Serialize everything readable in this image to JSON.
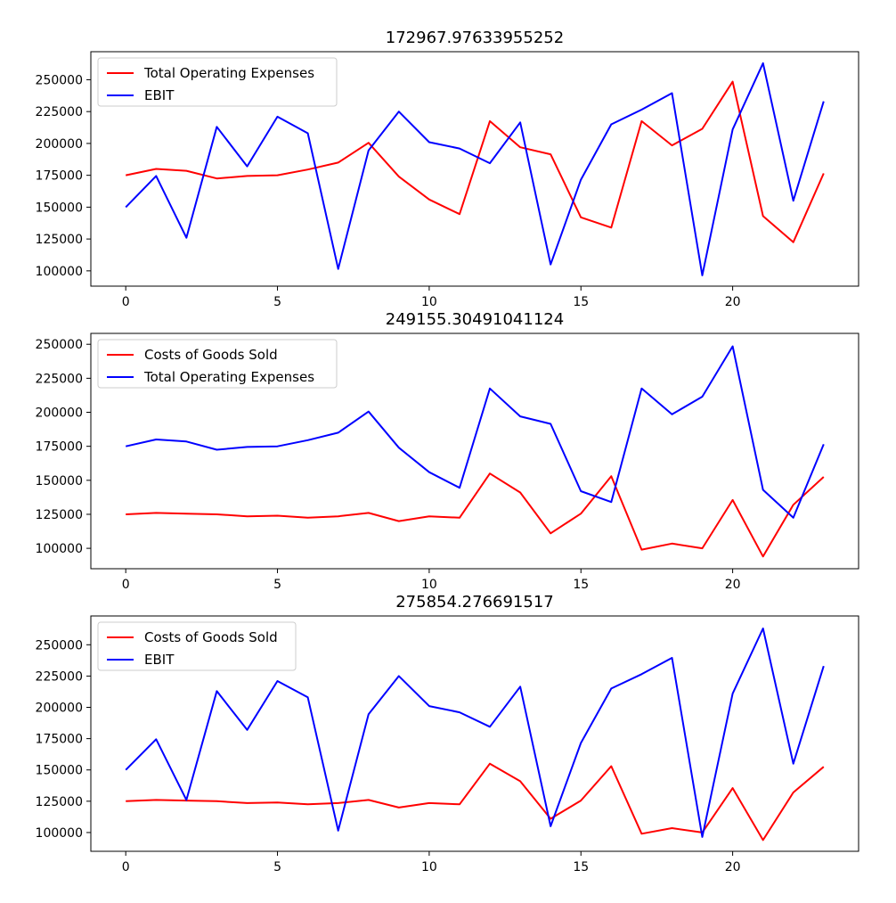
{
  "chart_data": [
    {
      "type": "line",
      "title": "172967.97633955252",
      "x": [
        0,
        1,
        2,
        3,
        4,
        5,
        6,
        7,
        8,
        9,
        10,
        11,
        12,
        13,
        14,
        15,
        16,
        17,
        18,
        19,
        20,
        21,
        22,
        23
      ],
      "xticks": [
        0,
        5,
        10,
        15,
        20
      ],
      "xlim": [
        -1.15,
        24.15
      ],
      "yticks": [
        100000,
        125000,
        150000,
        175000,
        200000,
        225000,
        250000
      ],
      "ylim": [
        88000,
        272000
      ],
      "legend_position": "upper-left",
      "grid": false,
      "series": [
        {
          "name": "Total Operating Expenses",
          "color": "#ff0000",
          "values": [
            175000,
            180000,
            178500,
            172500,
            174500,
            175000,
            179500,
            185000,
            200500,
            174000,
            156000,
            144500,
            217500,
            197000,
            191500,
            142000,
            134000,
            217500,
            198500,
            211500,
            248500,
            143000,
            122500,
            176500
          ]
        },
        {
          "name": "EBIT",
          "color": "#0000ff",
          "values": [
            150000,
            174500,
            126000,
            213000,
            182000,
            221000,
            208000,
            101500,
            194500,
            225000,
            201000,
            196000,
            184500,
            216500,
            105000,
            171500,
            215000,
            226500,
            239500,
            96500,
            211000,
            263000,
            155000,
            233000
          ]
        }
      ]
    },
    {
      "type": "line",
      "title": "249155.30491041124",
      "x": [
        0,
        1,
        2,
        3,
        4,
        5,
        6,
        7,
        8,
        9,
        10,
        11,
        12,
        13,
        14,
        15,
        16,
        17,
        18,
        19,
        20,
        21,
        22,
        23
      ],
      "xticks": [
        0,
        5,
        10,
        15,
        20
      ],
      "xlim": [
        -1.15,
        24.15
      ],
      "yticks": [
        100000,
        125000,
        150000,
        175000,
        200000,
        225000,
        250000
      ],
      "ylim": [
        85000,
        258000
      ],
      "legend_position": "upper-left",
      "grid": false,
      "series": [
        {
          "name": "Costs of Goods Sold",
          "color": "#ff0000",
          "values": [
            125000,
            126000,
            125500,
            125000,
            123500,
            124000,
            122500,
            123500,
            126000,
            120000,
            123500,
            122500,
            155000,
            141000,
            111000,
            125500,
            153000,
            99000,
            103500,
            100000,
            135500,
            94000,
            132000,
            152500
          ]
        },
        {
          "name": "Total Operating Expenses",
          "color": "#0000ff",
          "values": [
            175000,
            180000,
            178500,
            172500,
            174500,
            175000,
            179500,
            185000,
            200500,
            174000,
            156000,
            144500,
            217500,
            197000,
            191500,
            142000,
            134000,
            217500,
            198500,
            211500,
            248500,
            143000,
            122500,
            176500
          ]
        }
      ]
    },
    {
      "type": "line",
      "title": "275854.276691517",
      "x": [
        0,
        1,
        2,
        3,
        4,
        5,
        6,
        7,
        8,
        9,
        10,
        11,
        12,
        13,
        14,
        15,
        16,
        17,
        18,
        19,
        20,
        21,
        22,
        23
      ],
      "xticks": [
        0,
        5,
        10,
        15,
        20
      ],
      "xlim": [
        -1.15,
        24.15
      ],
      "yticks": [
        100000,
        125000,
        150000,
        175000,
        200000,
        225000,
        250000
      ],
      "ylim": [
        85000,
        273000
      ],
      "legend_position": "upper-left",
      "grid": false,
      "series": [
        {
          "name": "Costs of Goods Sold",
          "color": "#ff0000",
          "values": [
            125000,
            126000,
            125500,
            125000,
            123500,
            124000,
            122500,
            123500,
            126000,
            120000,
            123500,
            122500,
            155000,
            141000,
            111000,
            125500,
            153000,
            99000,
            103500,
            100000,
            135500,
            94000,
            132000,
            152500
          ]
        },
        {
          "name": "EBIT",
          "color": "#0000ff",
          "values": [
            150000,
            174500,
            126000,
            213000,
            182000,
            221000,
            208000,
            101500,
            194500,
            225000,
            201000,
            196000,
            184500,
            216500,
            105000,
            171500,
            215000,
            226500,
            239500,
            96500,
            211000,
            263000,
            155000,
            233000
          ]
        }
      ]
    }
  ]
}
